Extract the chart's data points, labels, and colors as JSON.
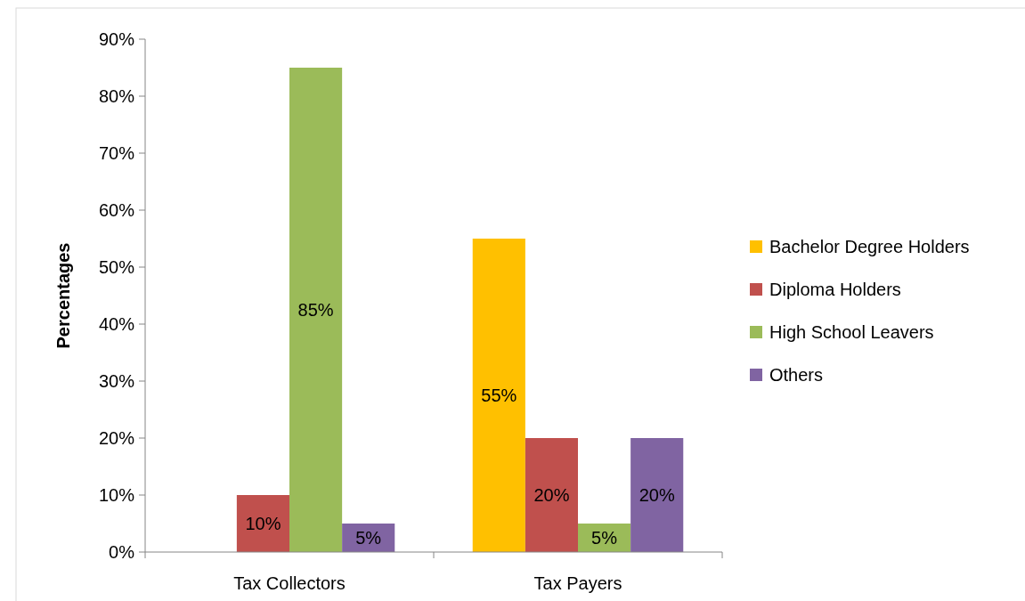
{
  "chart_data": {
    "type": "bar",
    "ylabel": "Percentages",
    "categories": [
      "Tax Collectors",
      "Tax Payers"
    ],
    "series": [
      {
        "name": "Bachelor Degree Holders",
        "color": "#ffc000",
        "values": [
          null,
          55
        ],
        "value_labels": [
          null,
          "55%"
        ]
      },
      {
        "name": "Diploma Holders",
        "color": "#c0504d",
        "values": [
          10,
          20
        ],
        "value_labels": [
          "10%",
          "20%"
        ]
      },
      {
        "name": "High School Leavers",
        "color": "#9bbb59",
        "values": [
          85,
          5
        ],
        "value_labels": [
          "85%",
          "5%"
        ]
      },
      {
        "name": "Others",
        "color": "#8064a2",
        "values": [
          5,
          20
        ],
        "value_labels": [
          "5%",
          "20%"
        ]
      }
    ],
    "ylim": [
      0,
      90
    ],
    "yticks": [
      {
        "value": 0,
        "label": "0%"
      },
      {
        "value": 10,
        "label": "10%"
      },
      {
        "value": 20,
        "label": "20%"
      },
      {
        "value": 30,
        "label": "30%"
      },
      {
        "value": 40,
        "label": "40%"
      },
      {
        "value": 50,
        "label": "50%"
      },
      {
        "value": 60,
        "label": "60%"
      },
      {
        "value": 70,
        "label": "70%"
      },
      {
        "value": 80,
        "label": "80%"
      },
      {
        "value": 90,
        "label": "90%"
      }
    ],
    "legend": "right",
    "grid": false
  }
}
